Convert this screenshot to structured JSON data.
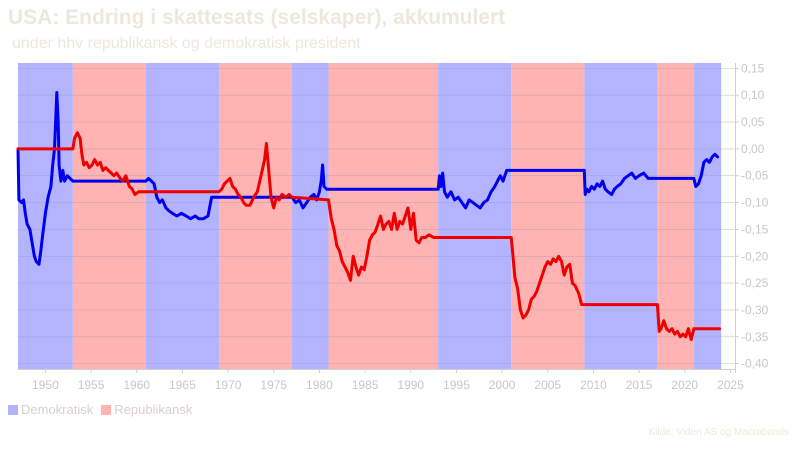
{
  "chart_data": {
    "type": "line",
    "title": "USA: Endring i skattesats (selskaper), akkumulert",
    "subtitle": "under hhv republikansk og demokratisk president",
    "source": "Kilde: Viden AS og Macrobonds",
    "xlim": [
      1947,
      2025.5
    ],
    "ylim": [
      -0.41,
      0.16
    ],
    "x_ticks": [
      1950,
      1955,
      1960,
      1965,
      1970,
      1975,
      1980,
      1985,
      1990,
      1995,
      2000,
      2005,
      2010,
      2015,
      2020,
      2025
    ],
    "y_ticks": [
      0.15,
      0.1,
      0.05,
      0.0,
      -0.05,
      -0.1,
      -0.15,
      -0.2,
      -0.25,
      -0.3,
      -0.35,
      -0.4
    ],
    "y_tick_labels": [
      "0,15",
      "0,10",
      "0,05",
      "0,00",
      "-0,05",
      "-0,10",
      "-0,15",
      "-0,20",
      "-0,25",
      "-0,30",
      "-0,35",
      "-0,40"
    ],
    "grid": true,
    "legend_position": "bottom-left",
    "legend": [
      {
        "label": "Demokratisk",
        "color": "#b3b3ff"
      },
      {
        "label": "Republikansk",
        "color": "#ffb3b3"
      }
    ],
    "periods": [
      {
        "party": "Demokratisk",
        "start": 1947,
        "end": 1953
      },
      {
        "party": "Republikansk",
        "start": 1953,
        "end": 1961
      },
      {
        "party": "Demokratisk",
        "start": 1961,
        "end": 1969
      },
      {
        "party": "Republikansk",
        "start": 1969,
        "end": 1977
      },
      {
        "party": "Demokratisk",
        "start": 1977,
        "end": 1981
      },
      {
        "party": "Republikansk",
        "start": 1981,
        "end": 1993
      },
      {
        "party": "Demokratisk",
        "start": 1993,
        "end": 2001
      },
      {
        "party": "Republikansk",
        "start": 2001,
        "end": 2009
      },
      {
        "party": "Demokratisk",
        "start": 2009,
        "end": 2017
      },
      {
        "party": "Republikansk",
        "start": 2017,
        "end": 2021
      },
      {
        "party": "Demokratisk",
        "start": 2021,
        "end": 2024
      }
    ],
    "series": [
      {
        "name": "Demokratisk",
        "color": "#0000ee",
        "points": [
          [
            1947,
            0.0
          ],
          [
            1947.1,
            -0.095
          ],
          [
            1947.4,
            -0.1
          ],
          [
            1947.6,
            -0.095
          ],
          [
            1947.8,
            -0.12
          ],
          [
            1948.0,
            -0.14
          ],
          [
            1948.3,
            -0.15
          ],
          [
            1948.5,
            -0.17
          ],
          [
            1948.8,
            -0.2
          ],
          [
            1949.0,
            -0.21
          ],
          [
            1949.3,
            -0.215
          ],
          [
            1949.5,
            -0.19
          ],
          [
            1949.7,
            -0.16
          ],
          [
            1950.0,
            -0.12
          ],
          [
            1950.3,
            -0.09
          ],
          [
            1950.6,
            -0.07
          ],
          [
            1950.8,
            -0.03
          ],
          [
            1951.0,
            0.0
          ],
          [
            1951.1,
            0.04
          ],
          [
            1951.25,
            0.105
          ],
          [
            1951.4,
            0.05
          ],
          [
            1951.5,
            -0.03
          ],
          [
            1951.7,
            -0.06
          ],
          [
            1951.9,
            -0.04
          ],
          [
            1952.1,
            -0.06
          ],
          [
            1952.4,
            -0.05
          ],
          [
            1952.7,
            -0.055
          ],
          [
            1953.0,
            -0.06
          ],
          [
            1961.0,
            -0.06
          ],
          [
            1961.3,
            -0.055
          ],
          [
            1961.6,
            -0.06
          ],
          [
            1961.9,
            -0.065
          ],
          [
            1962.2,
            -0.09
          ],
          [
            1962.5,
            -0.1
          ],
          [
            1962.8,
            -0.095
          ],
          [
            1963.2,
            -0.11
          ],
          [
            1963.5,
            -0.115
          ],
          [
            1963.9,
            -0.12
          ],
          [
            1964.4,
            -0.125
          ],
          [
            1964.9,
            -0.12
          ],
          [
            1965.4,
            -0.125
          ],
          [
            1965.9,
            -0.13
          ],
          [
            1966.4,
            -0.125
          ],
          [
            1966.8,
            -0.13
          ],
          [
            1967.3,
            -0.13
          ],
          [
            1967.8,
            -0.125
          ],
          [
            1968.2,
            -0.09
          ],
          [
            1968.6,
            -0.09
          ],
          [
            1969.0,
            -0.09
          ],
          [
            1977.0,
            -0.09
          ],
          [
            1977.4,
            -0.1
          ],
          [
            1977.8,
            -0.095
          ],
          [
            1978.2,
            -0.11
          ],
          [
            1978.6,
            -0.1
          ],
          [
            1979.0,
            -0.09
          ],
          [
            1979.4,
            -0.085
          ],
          [
            1979.7,
            -0.095
          ],
          [
            1980.0,
            -0.08
          ],
          [
            1980.2,
            -0.06
          ],
          [
            1980.35,
            -0.03
          ],
          [
            1980.5,
            -0.07
          ],
          [
            1980.8,
            -0.075
          ],
          [
            1981.0,
            -0.075
          ],
          [
            1993.0,
            -0.075
          ],
          [
            1993.15,
            -0.05
          ],
          [
            1993.3,
            -0.07
          ],
          [
            1993.5,
            -0.045
          ],
          [
            1993.7,
            -0.08
          ],
          [
            1994.0,
            -0.09
          ],
          [
            1994.4,
            -0.08
          ],
          [
            1994.8,
            -0.095
          ],
          [
            1995.2,
            -0.09
          ],
          [
            1995.6,
            -0.1
          ],
          [
            1996.0,
            -0.11
          ],
          [
            1996.4,
            -0.095
          ],
          [
            1996.8,
            -0.1
          ],
          [
            1997.2,
            -0.105
          ],
          [
            1997.6,
            -0.11
          ],
          [
            1998.0,
            -0.1
          ],
          [
            1998.4,
            -0.095
          ],
          [
            1998.8,
            -0.08
          ],
          [
            1999.2,
            -0.07
          ],
          [
            1999.5,
            -0.06
          ],
          [
            1999.8,
            -0.05
          ],
          [
            2000.1,
            -0.06
          ],
          [
            2000.5,
            -0.04
          ],
          [
            2001.0,
            -0.04
          ],
          [
            2009.0,
            -0.04
          ],
          [
            2009.1,
            -0.085
          ],
          [
            2009.3,
            -0.075
          ],
          [
            2009.5,
            -0.08
          ],
          [
            2009.8,
            -0.07
          ],
          [
            2010.1,
            -0.075
          ],
          [
            2010.4,
            -0.065
          ],
          [
            2010.7,
            -0.07
          ],
          [
            2011.0,
            -0.06
          ],
          [
            2011.3,
            -0.075
          ],
          [
            2011.6,
            -0.08
          ],
          [
            2012.0,
            -0.085
          ],
          [
            2012.3,
            -0.075
          ],
          [
            2012.6,
            -0.07
          ],
          [
            2013.0,
            -0.065
          ],
          [
            2013.4,
            -0.055
          ],
          [
            2013.8,
            -0.05
          ],
          [
            2014.2,
            -0.045
          ],
          [
            2014.6,
            -0.055
          ],
          [
            2015.0,
            -0.05
          ],
          [
            2015.5,
            -0.045
          ],
          [
            2016.0,
            -0.055
          ],
          [
            2016.5,
            -0.055
          ],
          [
            2017.0,
            -0.055
          ],
          [
            2021.0,
            -0.055
          ],
          [
            2021.2,
            -0.07
          ],
          [
            2021.5,
            -0.065
          ],
          [
            2021.8,
            -0.05
          ],
          [
            2022.1,
            -0.025
          ],
          [
            2022.4,
            -0.02
          ],
          [
            2022.7,
            -0.025
          ],
          [
            2023.0,
            -0.015
          ],
          [
            2023.3,
            -0.01
          ],
          [
            2023.6,
            -0.015
          ]
        ]
      },
      {
        "name": "Republikansk",
        "color": "#ee0000",
        "points": [
          [
            1947,
            0.0
          ],
          [
            1953.0,
            0.0
          ],
          [
            1953.2,
            0.02
          ],
          [
            1953.5,
            0.03
          ],
          [
            1953.8,
            0.02
          ],
          [
            1954.0,
            -0.01
          ],
          [
            1954.2,
            -0.03
          ],
          [
            1954.5,
            -0.025
          ],
          [
            1954.8,
            -0.035
          ],
          [
            1955.1,
            -0.03
          ],
          [
            1955.4,
            -0.02
          ],
          [
            1955.7,
            -0.03
          ],
          [
            1956.0,
            -0.025
          ],
          [
            1956.3,
            -0.04
          ],
          [
            1956.6,
            -0.035
          ],
          [
            1956.9,
            -0.04
          ],
          [
            1957.2,
            -0.045
          ],
          [
            1957.5,
            -0.05
          ],
          [
            1957.8,
            -0.045
          ],
          [
            1958.2,
            -0.055
          ],
          [
            1958.5,
            -0.06
          ],
          [
            1958.8,
            -0.05
          ],
          [
            1959.2,
            -0.07
          ],
          [
            1959.5,
            -0.075
          ],
          [
            1959.8,
            -0.085
          ],
          [
            1960.2,
            -0.08
          ],
          [
            1960.6,
            -0.08
          ],
          [
            1961.0,
            -0.08
          ],
          [
            1969.0,
            -0.08
          ],
          [
            1969.3,
            -0.075
          ],
          [
            1969.6,
            -0.065
          ],
          [
            1969.9,
            -0.06
          ],
          [
            1970.2,
            -0.055
          ],
          [
            1970.5,
            -0.07
          ],
          [
            1970.8,
            -0.075
          ],
          [
            1971.1,
            -0.085
          ],
          [
            1971.4,
            -0.09
          ],
          [
            1971.7,
            -0.1
          ],
          [
            1972.0,
            -0.105
          ],
          [
            1972.4,
            -0.105
          ],
          [
            1972.8,
            -0.09
          ],
          [
            1973.2,
            -0.08
          ],
          [
            1973.6,
            -0.05
          ],
          [
            1974.0,
            -0.02
          ],
          [
            1974.2,
            0.01
          ],
          [
            1974.4,
            -0.03
          ],
          [
            1974.7,
            -0.09
          ],
          [
            1975.0,
            -0.11
          ],
          [
            1975.3,
            -0.09
          ],
          [
            1975.6,
            -0.095
          ],
          [
            1975.9,
            -0.085
          ],
          [
            1976.3,
            -0.09
          ],
          [
            1976.7,
            -0.085
          ],
          [
            1977.0,
            -0.09
          ],
          [
            1981.0,
            -0.095
          ],
          [
            1981.3,
            -0.13
          ],
          [
            1981.6,
            -0.15
          ],
          [
            1981.9,
            -0.18
          ],
          [
            1982.2,
            -0.19
          ],
          [
            1982.5,
            -0.21
          ],
          [
            1982.8,
            -0.22
          ],
          [
            1983.1,
            -0.23
          ],
          [
            1983.4,
            -0.245
          ],
          [
            1983.7,
            -0.2
          ],
          [
            1984.0,
            -0.22
          ],
          [
            1984.3,
            -0.235
          ],
          [
            1984.6,
            -0.22
          ],
          [
            1984.9,
            -0.225
          ],
          [
            1985.2,
            -0.2
          ],
          [
            1985.5,
            -0.17
          ],
          [
            1985.8,
            -0.16
          ],
          [
            1986.1,
            -0.155
          ],
          [
            1986.4,
            -0.14
          ],
          [
            1986.7,
            -0.125
          ],
          [
            1987.0,
            -0.15
          ],
          [
            1987.3,
            -0.14
          ],
          [
            1987.6,
            -0.135
          ],
          [
            1987.9,
            -0.15
          ],
          [
            1988.2,
            -0.12
          ],
          [
            1988.5,
            -0.15
          ],
          [
            1988.8,
            -0.135
          ],
          [
            1989.1,
            -0.14
          ],
          [
            1989.4,
            -0.125
          ],
          [
            1989.7,
            -0.11
          ],
          [
            1990.0,
            -0.15
          ],
          [
            1990.3,
            -0.12
          ],
          [
            1990.6,
            -0.17
          ],
          [
            1990.9,
            -0.175
          ],
          [
            1991.2,
            -0.165
          ],
          [
            1991.6,
            -0.165
          ],
          [
            1992.0,
            -0.16
          ],
          [
            1992.5,
            -0.165
          ],
          [
            1993.0,
            -0.165
          ],
          [
            2001.0,
            -0.165
          ],
          [
            2001.2,
            -0.2
          ],
          [
            2001.4,
            -0.24
          ],
          [
            2001.7,
            -0.26
          ],
          [
            2002.0,
            -0.3
          ],
          [
            2002.3,
            -0.315
          ],
          [
            2002.6,
            -0.31
          ],
          [
            2002.9,
            -0.3
          ],
          [
            2003.2,
            -0.28
          ],
          [
            2003.5,
            -0.275
          ],
          [
            2003.8,
            -0.265
          ],
          [
            2004.1,
            -0.25
          ],
          [
            2004.4,
            -0.235
          ],
          [
            2004.7,
            -0.22
          ],
          [
            2005.0,
            -0.21
          ],
          [
            2005.3,
            -0.215
          ],
          [
            2005.6,
            -0.205
          ],
          [
            2005.9,
            -0.21
          ],
          [
            2006.2,
            -0.2
          ],
          [
            2006.5,
            -0.21
          ],
          [
            2006.8,
            -0.235
          ],
          [
            2007.1,
            -0.22
          ],
          [
            2007.4,
            -0.215
          ],
          [
            2007.7,
            -0.25
          ],
          [
            2008.0,
            -0.255
          ],
          [
            2008.4,
            -0.27
          ],
          [
            2008.7,
            -0.29
          ],
          [
            2009.0,
            -0.29
          ],
          [
            2017.0,
            -0.29
          ],
          [
            2017.2,
            -0.34
          ],
          [
            2017.4,
            -0.335
          ],
          [
            2017.7,
            -0.32
          ],
          [
            2018.0,
            -0.335
          ],
          [
            2018.3,
            -0.34
          ],
          [
            2018.6,
            -0.335
          ],
          [
            2018.9,
            -0.345
          ],
          [
            2019.2,
            -0.34
          ],
          [
            2019.5,
            -0.35
          ],
          [
            2019.8,
            -0.345
          ],
          [
            2020.1,
            -0.35
          ],
          [
            2020.4,
            -0.335
          ],
          [
            2020.7,
            -0.355
          ],
          [
            2021.0,
            -0.335
          ],
          [
            2021.5,
            -0.335
          ],
          [
            2022.5,
            -0.335
          ],
          [
            2023.8,
            -0.335
          ]
        ]
      }
    ]
  }
}
